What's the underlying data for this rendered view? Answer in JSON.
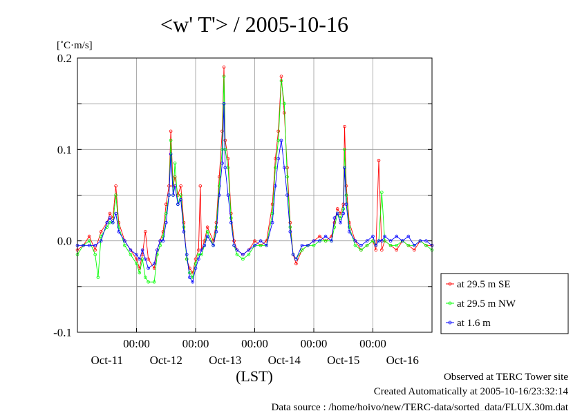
{
  "chart_data": {
    "type": "line",
    "title": "<w' T'> / 2005-10-16",
    "ylabel": "[˚C·m/s]",
    "xlabel": "(LST)",
    "ylim": [
      -0.1,
      0.2
    ],
    "xlim": [
      0,
      6
    ],
    "yticks": [
      "0.2",
      "0.1",
      "0.0",
      "-0.1"
    ],
    "ytick_values": [
      0.2,
      0.1,
      0.0,
      -0.1
    ],
    "time_labels": [
      "00:00",
      "00:00",
      "00:00",
      "00:00",
      "00:00"
    ],
    "time_label_x": [
      1,
      2,
      3,
      4,
      5
    ],
    "date_labels": [
      "Oct-11",
      "Oct-12",
      "Oct-13",
      "Oct-14",
      "Oct-15",
      "Oct-16"
    ],
    "date_label_x": [
      0.5,
      1.5,
      2.5,
      3.5,
      4.5,
      5.5
    ],
    "grid": true,
    "legend_position": "right",
    "series": [
      {
        "name": "at 29.5 m SE",
        "color": "#ff0000",
        "points": [
          [
            0,
            -0.01
          ],
          [
            0.1,
            -0.005
          ],
          [
            0.2,
            0.005
          ],
          [
            0.3,
            -0.01
          ],
          [
            0.4,
            0.01
          ],
          [
            0.5,
            0.02
          ],
          [
            0.55,
            0.03
          ],
          [
            0.6,
            0.025
          ],
          [
            0.65,
            0.06
          ],
          [
            0.7,
            0.02
          ],
          [
            0.8,
            0.0
          ],
          [
            0.9,
            -0.01
          ],
          [
            1.0,
            -0.02
          ],
          [
            1.05,
            -0.03
          ],
          [
            1.1,
            -0.015
          ],
          [
            1.15,
            0.01
          ],
          [
            1.2,
            -0.02
          ],
          [
            1.3,
            -0.03
          ],
          [
            1.35,
            -0.01
          ],
          [
            1.4,
            0.0
          ],
          [
            1.45,
            0.01
          ],
          [
            1.5,
            0.04
          ],
          [
            1.55,
            0.06
          ],
          [
            1.58,
            0.12
          ],
          [
            1.62,
            0.06
          ],
          [
            1.65,
            0.07
          ],
          [
            1.7,
            0.05
          ],
          [
            1.75,
            0.06
          ],
          [
            1.8,
            0.02
          ],
          [
            1.85,
            -0.02
          ],
          [
            1.9,
            -0.03
          ],
          [
            1.95,
            -0.035
          ],
          [
            2.0,
            -0.02
          ],
          [
            2.05,
            -0.01
          ],
          [
            2.08,
            0.06
          ],
          [
            2.1,
            -0.01
          ],
          [
            2.15,
            0.0
          ],
          [
            2.2,
            0.015
          ],
          [
            2.3,
            0.0
          ],
          [
            2.35,
            0.02
          ],
          [
            2.4,
            0.07
          ],
          [
            2.45,
            0.12
          ],
          [
            2.48,
            0.19
          ],
          [
            2.5,
            0.11
          ],
          [
            2.55,
            0.09
          ],
          [
            2.6,
            0.03
          ],
          [
            2.65,
            0.0
          ],
          [
            2.7,
            -0.01
          ],
          [
            2.8,
            -0.015
          ],
          [
            2.9,
            -0.01
          ],
          [
            3.0,
            0.0
          ],
          [
            3.1,
            -0.005
          ],
          [
            3.2,
            0.0
          ],
          [
            3.3,
            0.04
          ],
          [
            3.35,
            0.09
          ],
          [
            3.4,
            0.12
          ],
          [
            3.45,
            0.18
          ],
          [
            3.5,
            0.14
          ],
          [
            3.55,
            0.08
          ],
          [
            3.6,
            0.02
          ],
          [
            3.65,
            -0.015
          ],
          [
            3.7,
            -0.025
          ],
          [
            3.8,
            -0.01
          ],
          [
            3.9,
            -0.005
          ],
          [
            4.0,
            0.0
          ],
          [
            4.1,
            0.005
          ],
          [
            4.2,
            0.0
          ],
          [
            4.3,
            0.005
          ],
          [
            4.35,
            0.02
          ],
          [
            4.4,
            0.035
          ],
          [
            4.45,
            0.03
          ],
          [
            4.5,
            0.04
          ],
          [
            4.52,
            0.125
          ],
          [
            4.55,
            0.06
          ],
          [
            4.6,
            0.02
          ],
          [
            4.7,
            0.0
          ],
          [
            4.8,
            -0.01
          ],
          [
            4.9,
            -0.005
          ],
          [
            5.0,
            0.0
          ],
          [
            5.05,
            -0.01
          ],
          [
            5.1,
            0.088
          ],
          [
            5.15,
            -0.01
          ],
          [
            5.2,
            0.0
          ],
          [
            5.3,
            -0.005
          ],
          [
            5.4,
            -0.01
          ],
          [
            5.5,
            0.0
          ],
          [
            5.6,
            -0.005
          ],
          [
            5.7,
            -0.01
          ],
          [
            5.8,
            0.0
          ],
          [
            5.9,
            -0.005
          ],
          [
            6.0,
            -0.005
          ]
        ]
      },
      {
        "name": "at 29.5 m NW",
        "color": "#00ff00",
        "points": [
          [
            0,
            -0.015
          ],
          [
            0.1,
            -0.005
          ],
          [
            0.2,
            0.0
          ],
          [
            0.3,
            -0.015
          ],
          [
            0.35,
            -0.04
          ],
          [
            0.4,
            0.005
          ],
          [
            0.5,
            0.015
          ],
          [
            0.55,
            0.02
          ],
          [
            0.6,
            0.02
          ],
          [
            0.65,
            0.05
          ],
          [
            0.7,
            0.015
          ],
          [
            0.8,
            -0.005
          ],
          [
            0.9,
            -0.015
          ],
          [
            1.0,
            -0.025
          ],
          [
            1.05,
            -0.035
          ],
          [
            1.1,
            -0.02
          ],
          [
            1.15,
            -0.04
          ],
          [
            1.2,
            -0.045
          ],
          [
            1.3,
            -0.045
          ],
          [
            1.35,
            -0.015
          ],
          [
            1.4,
            -0.005
          ],
          [
            1.45,
            0.005
          ],
          [
            1.5,
            0.03
          ],
          [
            1.55,
            0.05
          ],
          [
            1.58,
            0.11
          ],
          [
            1.62,
            0.05
          ],
          [
            1.65,
            0.085
          ],
          [
            1.7,
            0.04
          ],
          [
            1.75,
            0.05
          ],
          [
            1.8,
            0.015
          ],
          [
            1.85,
            -0.02
          ],
          [
            1.9,
            -0.035
          ],
          [
            1.95,
            -0.04
          ],
          [
            2.0,
            -0.025
          ],
          [
            2.05,
            -0.015
          ],
          [
            2.1,
            -0.015
          ],
          [
            2.15,
            -0.005
          ],
          [
            2.2,
            0.01
          ],
          [
            2.3,
            -0.005
          ],
          [
            2.35,
            0.015
          ],
          [
            2.4,
            0.06
          ],
          [
            2.45,
            0.1
          ],
          [
            2.48,
            0.18
          ],
          [
            2.5,
            0.1
          ],
          [
            2.55,
            0.08
          ],
          [
            2.6,
            0.025
          ],
          [
            2.65,
            -0.005
          ],
          [
            2.7,
            -0.015
          ],
          [
            2.8,
            -0.02
          ],
          [
            2.9,
            -0.015
          ],
          [
            3.0,
            -0.005
          ],
          [
            3.1,
            -0.005
          ],
          [
            3.2,
            -0.005
          ],
          [
            3.3,
            0.03
          ],
          [
            3.35,
            0.08
          ],
          [
            3.4,
            0.11
          ],
          [
            3.45,
            0.175
          ],
          [
            3.5,
            0.15
          ],
          [
            3.55,
            0.07
          ],
          [
            3.6,
            0.015
          ],
          [
            3.65,
            -0.015
          ],
          [
            3.7,
            -0.02
          ],
          [
            3.8,
            -0.01
          ],
          [
            3.9,
            -0.005
          ],
          [
            4.0,
            -0.005
          ],
          [
            4.1,
            0.0
          ],
          [
            4.2,
            0.0
          ],
          [
            4.3,
            0.0
          ],
          [
            4.35,
            0.015
          ],
          [
            4.4,
            0.03
          ],
          [
            4.45,
            0.025
          ],
          [
            4.5,
            0.035
          ],
          [
            4.52,
            0.1
          ],
          [
            4.55,
            0.05
          ],
          [
            4.6,
            0.015
          ],
          [
            4.7,
            -0.005
          ],
          [
            4.8,
            -0.01
          ],
          [
            4.9,
            -0.005
          ],
          [
            5.0,
            0.0
          ],
          [
            5.05,
            -0.005
          ],
          [
            5.1,
            0.0
          ],
          [
            5.15,
            0.053
          ],
          [
            5.2,
            0.0
          ],
          [
            5.3,
            -0.005
          ],
          [
            5.4,
            -0.005
          ],
          [
            5.5,
            0.0
          ],
          [
            5.6,
            -0.005
          ],
          [
            5.7,
            -0.005
          ],
          [
            5.8,
            0.0
          ],
          [
            5.9,
            -0.005
          ],
          [
            6.0,
            -0.01
          ]
        ]
      },
      {
        "name": "at 1.6 m",
        "color": "#0000ff",
        "points": [
          [
            0,
            -0.005
          ],
          [
            0.1,
            -0.005
          ],
          [
            0.2,
            -0.005
          ],
          [
            0.3,
            -0.005
          ],
          [
            0.4,
            0.0
          ],
          [
            0.5,
            0.02
          ],
          [
            0.55,
            0.025
          ],
          [
            0.6,
            0.02
          ],
          [
            0.65,
            0.03
          ],
          [
            0.7,
            0.01
          ],
          [
            0.8,
            0.0
          ],
          [
            0.9,
            -0.01
          ],
          [
            1.0,
            -0.015
          ],
          [
            1.05,
            -0.02
          ],
          [
            1.1,
            -0.01
          ],
          [
            1.15,
            -0.02
          ],
          [
            1.2,
            -0.03
          ],
          [
            1.3,
            -0.025
          ],
          [
            1.35,
            -0.01
          ],
          [
            1.4,
            0.0
          ],
          [
            1.45,
            0.0
          ],
          [
            1.5,
            0.02
          ],
          [
            1.55,
            0.05
          ],
          [
            1.58,
            0.095
          ],
          [
            1.62,
            0.05
          ],
          [
            1.65,
            0.06
          ],
          [
            1.7,
            0.04
          ],
          [
            1.75,
            0.045
          ],
          [
            1.8,
            0.01
          ],
          [
            1.85,
            -0.015
          ],
          [
            1.9,
            -0.04
          ],
          [
            1.95,
            -0.045
          ],
          [
            2.0,
            -0.03
          ],
          [
            2.05,
            -0.02
          ],
          [
            2.1,
            -0.01
          ],
          [
            2.15,
            -0.005
          ],
          [
            2.2,
            0.005
          ],
          [
            2.3,
            -0.005
          ],
          [
            2.35,
            0.01
          ],
          [
            2.4,
            0.05
          ],
          [
            2.45,
            0.085
          ],
          [
            2.48,
            0.15
          ],
          [
            2.5,
            0.08
          ],
          [
            2.55,
            0.05
          ],
          [
            2.6,
            0.02
          ],
          [
            2.65,
            -0.005
          ],
          [
            2.7,
            -0.01
          ],
          [
            2.8,
            -0.015
          ],
          [
            2.9,
            -0.01
          ],
          [
            3.0,
            -0.005
          ],
          [
            3.1,
            0.0
          ],
          [
            3.2,
            -0.005
          ],
          [
            3.3,
            0.02
          ],
          [
            3.35,
            0.06
          ],
          [
            3.4,
            0.09
          ],
          [
            3.45,
            0.11
          ],
          [
            3.5,
            0.08
          ],
          [
            3.55,
            0.05
          ],
          [
            3.6,
            0.01
          ],
          [
            3.65,
            -0.015
          ],
          [
            3.7,
            -0.02
          ],
          [
            3.8,
            -0.005
          ],
          [
            3.9,
            -0.005
          ],
          [
            4.0,
            0.0
          ],
          [
            4.1,
            0.0
          ],
          [
            4.2,
            0.005
          ],
          [
            4.3,
            0.0
          ],
          [
            4.35,
            0.025
          ],
          [
            4.4,
            0.03
          ],
          [
            4.45,
            0.02
          ],
          [
            4.5,
            0.03
          ],
          [
            4.52,
            0.08
          ],
          [
            4.55,
            0.04
          ],
          [
            4.6,
            0.01
          ],
          [
            4.7,
            0.0
          ],
          [
            4.8,
            -0.005
          ],
          [
            4.9,
            0.0
          ],
          [
            5.0,
            0.005
          ],
          [
            5.05,
            -0.005
          ],
          [
            5.1,
            0.0
          ],
          [
            5.15,
            0.0
          ],
          [
            5.2,
            0.005
          ],
          [
            5.3,
            0.0
          ],
          [
            5.4,
            0.005
          ],
          [
            5.5,
            0.0
          ],
          [
            5.6,
            0.005
          ],
          [
            5.7,
            -0.005
          ],
          [
            5.8,
            0.0
          ],
          [
            5.9,
            0.0
          ],
          [
            6.0,
            -0.005
          ]
        ]
      }
    ]
  },
  "footer": {
    "observed": "Observed at TERC Tower site",
    "created": "Created Automatically at 2005-10-16/23:32:14",
    "source": "Data source : /home/hoivo/new/TERC-data/sorted_data/FLUX.30m.dat"
  }
}
